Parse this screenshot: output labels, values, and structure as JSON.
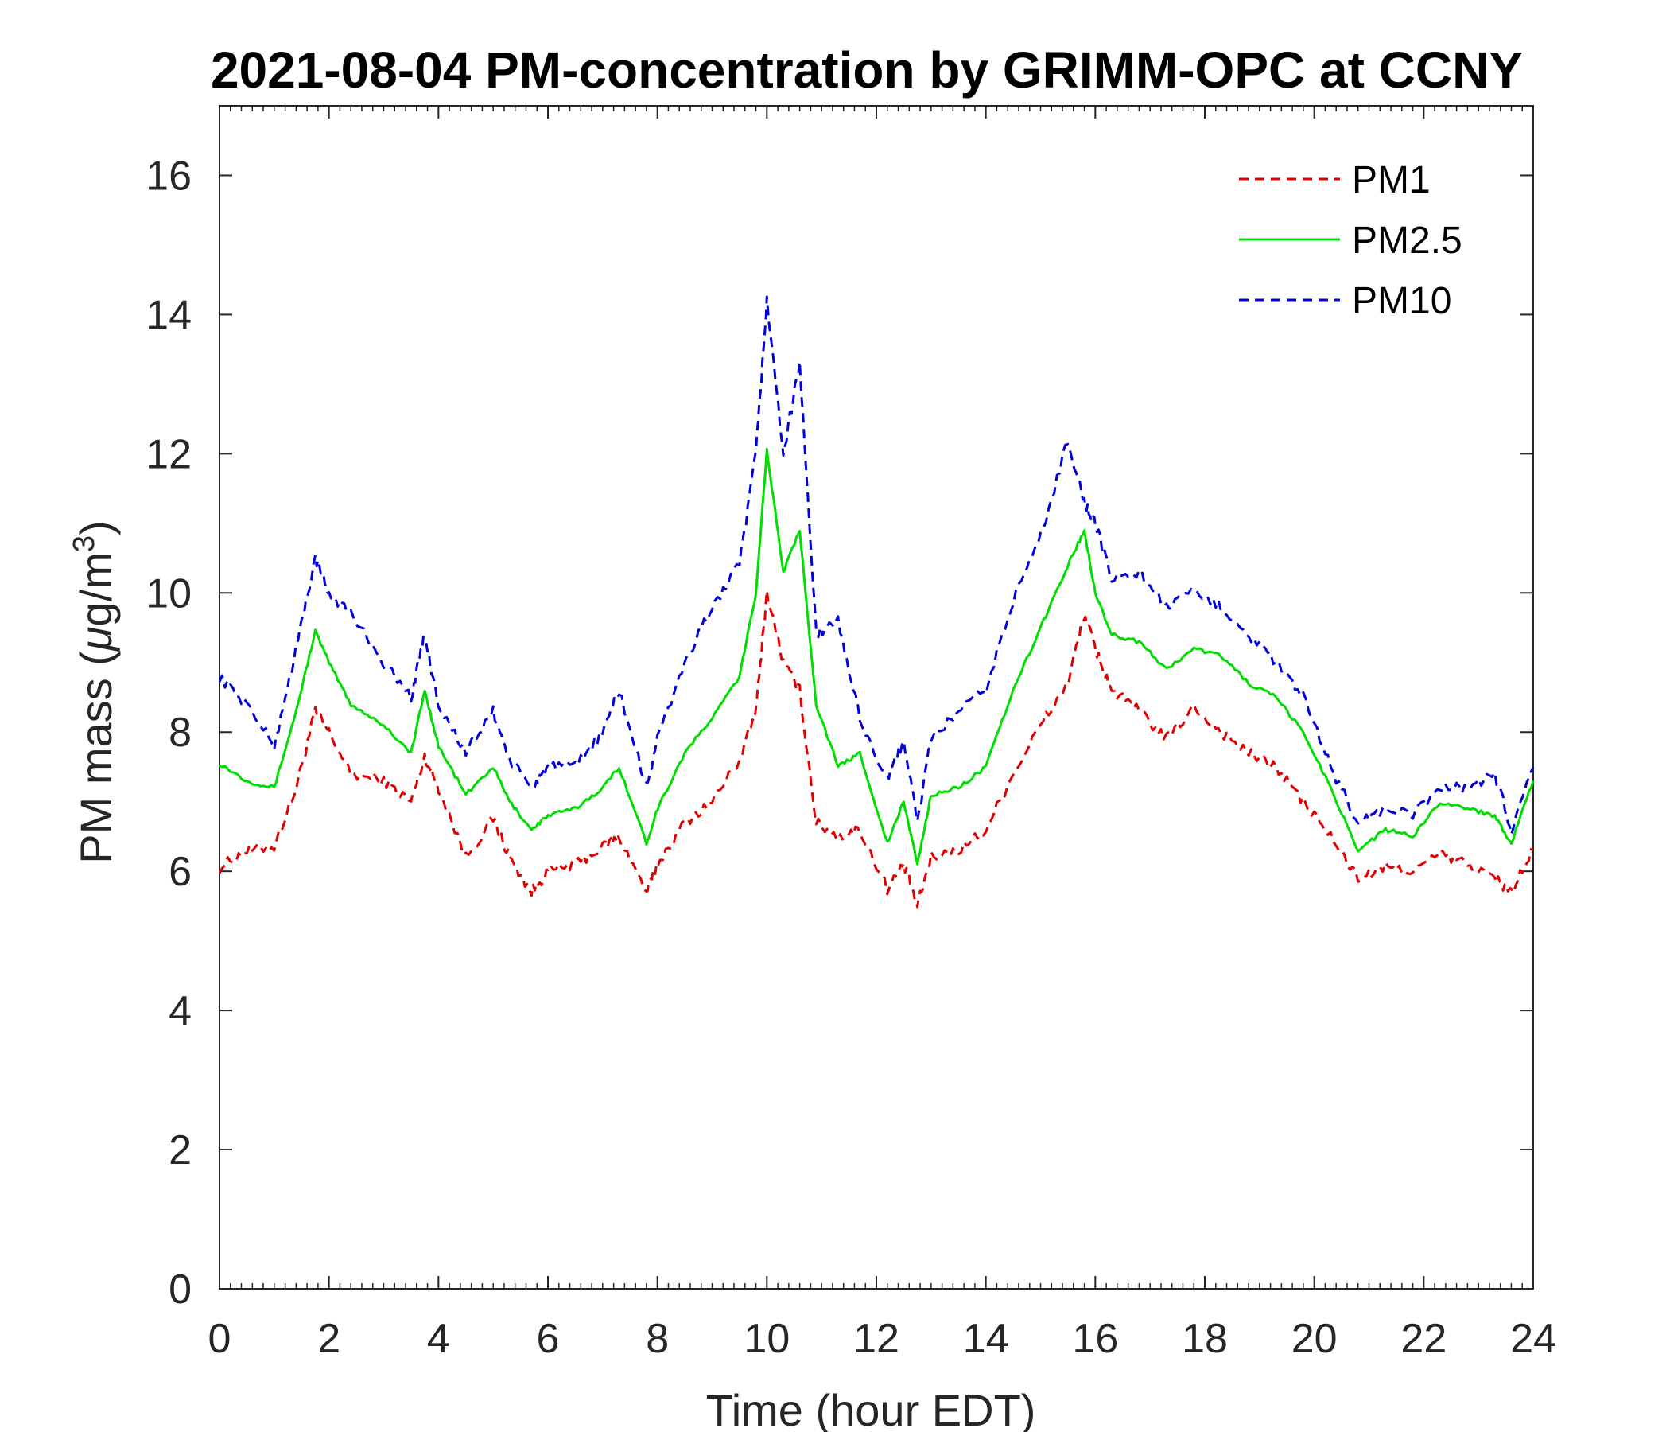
{
  "chart_data": {
    "type": "line",
    "title": "2021-08-04 PM-concentration by GRIMM-OPC at CCNY",
    "xlabel": "Time (hour EDT)",
    "ylabel_prefix": "PM mass (",
    "ylabel_mu": "μ",
    "ylabel_unit": "g/m",
    "ylabel_sup": "3",
    "ylabel_suffix": ")",
    "xlim": [
      0,
      24
    ],
    "ylim": [
      0,
      17
    ],
    "xticks": [
      0,
      2,
      4,
      6,
      8,
      10,
      12,
      14,
      16,
      18,
      20,
      22,
      24
    ],
    "yticks": [
      0,
      2,
      4,
      6,
      8,
      10,
      12,
      14,
      16
    ],
    "grid": false,
    "legend_position": "top-right",
    "series": [
      {
        "name": "PM1",
        "color": "#e00000",
        "dash": "dashed",
        "x": [
          0,
          0.5,
          1,
          1.4,
          1.75,
          2,
          2.4,
          3,
          3.5,
          3.75,
          4,
          4.5,
          5,
          5.3,
          5.7,
          6,
          6.5,
          7,
          7.3,
          7.8,
          8,
          8.5,
          9,
          9.5,
          9.8,
          10,
          10.3,
          10.6,
          10.9,
          11.3,
          11.7,
          12.2,
          12.5,
          12.75,
          13,
          13.5,
          14,
          14.5,
          15,
          15.5,
          15.8,
          16,
          16.3,
          16.8,
          17.3,
          17.8,
          18.3,
          18.8,
          19.3,
          19.8,
          20.3,
          20.8,
          21.3,
          21.8,
          22.3,
          22.8,
          23.3,
          23.6,
          24
        ],
        "y": [
          6.05,
          6.3,
          6.35,
          7.2,
          8.3,
          8.0,
          7.4,
          7.3,
          7.0,
          7.65,
          7.2,
          6.2,
          6.75,
          6.2,
          5.7,
          6.0,
          6.1,
          6.35,
          6.5,
          5.7,
          6.1,
          6.7,
          7.0,
          7.6,
          8.3,
          10.0,
          9.0,
          8.6,
          6.7,
          6.5,
          6.6,
          5.75,
          6.1,
          5.5,
          6.2,
          6.3,
          6.6,
          7.4,
          8.1,
          8.7,
          9.7,
          9.2,
          8.6,
          8.3,
          7.9,
          8.35,
          8.0,
          7.7,
          7.5,
          7.0,
          6.5,
          5.9,
          6.05,
          6.0,
          6.25,
          6.1,
          5.9,
          5.7,
          6.3
        ]
      },
      {
        "name": "PM2.5",
        "color": "#00dd00",
        "dash": "solid",
        "x": [
          0,
          0.5,
          1,
          1.4,
          1.75,
          2,
          2.4,
          3,
          3.5,
          3.75,
          4,
          4.5,
          5,
          5.3,
          5.7,
          6,
          6.5,
          7,
          7.3,
          7.8,
          8,
          8.5,
          9,
          9.5,
          9.8,
          10,
          10.3,
          10.6,
          10.9,
          11.3,
          11.7,
          12.2,
          12.5,
          12.75,
          13,
          13.5,
          14,
          14.5,
          15,
          15.5,
          15.8,
          16,
          16.3,
          16.8,
          17.3,
          17.8,
          18.3,
          18.8,
          19.3,
          19.8,
          20.3,
          20.8,
          21.3,
          21.8,
          22.3,
          22.8,
          23.3,
          23.6,
          24
        ],
        "y": [
          7.55,
          7.3,
          7.2,
          8.3,
          9.45,
          9.0,
          8.4,
          8.1,
          7.7,
          8.6,
          7.8,
          7.1,
          7.5,
          7.0,
          6.6,
          6.8,
          6.9,
          7.2,
          7.5,
          6.4,
          6.9,
          7.7,
          8.2,
          8.8,
          10.0,
          12.05,
          10.3,
          10.9,
          8.4,
          7.5,
          7.7,
          6.4,
          7.0,
          6.1,
          7.1,
          7.2,
          7.5,
          8.6,
          9.5,
          10.4,
          10.9,
          10.0,
          9.4,
          9.3,
          8.9,
          9.2,
          9.1,
          8.7,
          8.5,
          8.0,
          7.2,
          6.3,
          6.6,
          6.5,
          7.0,
          6.9,
          6.8,
          6.4,
          7.3
        ]
      },
      {
        "name": "PM10",
        "color": "#0000dd",
        "dash": "dashed",
        "x": [
          0,
          0.5,
          1,
          1.4,
          1.75,
          2,
          2.4,
          3,
          3.5,
          3.75,
          4,
          4.5,
          5,
          5.3,
          5.7,
          6,
          6.5,
          7,
          7.3,
          7.8,
          8,
          8.5,
          9,
          9.5,
          9.8,
          10,
          10.3,
          10.6,
          10.9,
          11.3,
          11.7,
          12.2,
          12.5,
          12.75,
          13,
          13.5,
          14,
          14.5,
          15,
          15.5,
          15.8,
          16,
          16.3,
          16.8,
          17.3,
          17.8,
          18.3,
          18.8,
          19.3,
          19.8,
          20.3,
          20.8,
          21.3,
          21.8,
          22.3,
          22.8,
          23.3,
          23.6,
          24
        ],
        "y": [
          8.8,
          8.4,
          7.8,
          9.2,
          10.5,
          10.0,
          9.7,
          9.0,
          8.5,
          9.4,
          8.4,
          7.7,
          8.3,
          7.6,
          7.2,
          7.5,
          7.5,
          8.0,
          8.6,
          7.2,
          7.9,
          9.0,
          9.8,
          10.4,
          12.0,
          14.2,
          12.0,
          13.3,
          9.4,
          9.6,
          8.2,
          7.3,
          7.9,
          6.7,
          7.9,
          8.3,
          8.6,
          9.9,
          10.8,
          12.2,
          11.3,
          11.0,
          10.2,
          10.3,
          9.8,
          10.0,
          9.8,
          9.4,
          9.0,
          8.5,
          7.5,
          6.7,
          6.9,
          6.8,
          7.2,
          7.2,
          7.4,
          6.6,
          7.5
        ]
      }
    ]
  }
}
